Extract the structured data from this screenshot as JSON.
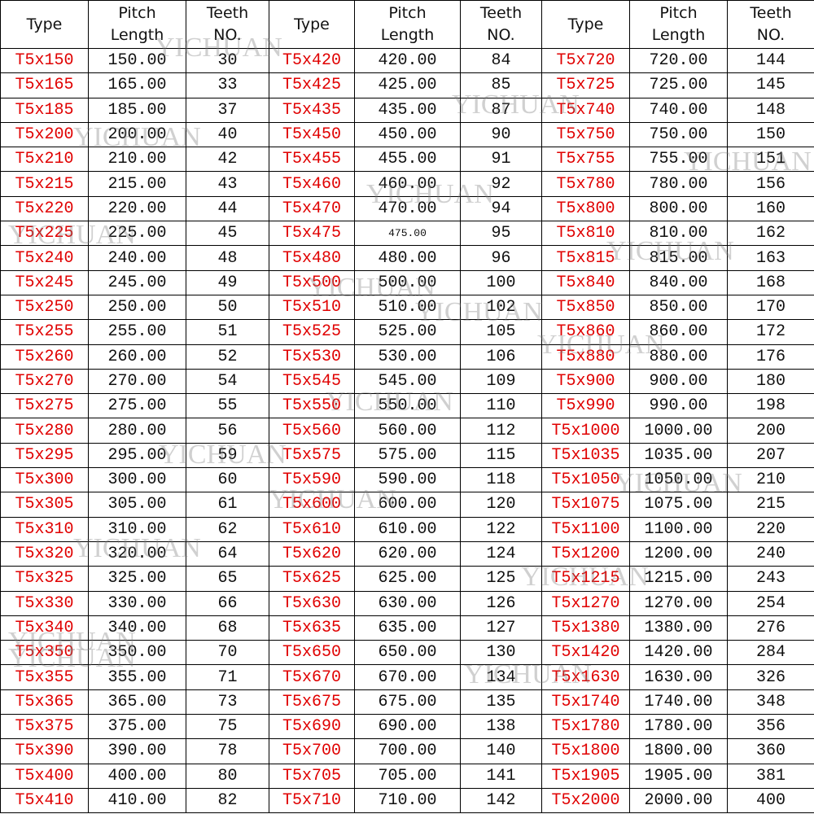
{
  "table": {
    "header": [
      "Type",
      "Pitch Length",
      "Teeth NO.",
      "Type",
      "Pitch Length",
      "Teeth NO.",
      "Type",
      "Pitch Length",
      "Teeth NO."
    ],
    "rows": [
      [
        "T5x150",
        "150.00",
        "30",
        "T5x420",
        "420.00",
        "84",
        "T5x720",
        "720.00",
        "144"
      ],
      [
        "T5x165",
        "165.00",
        "33",
        "T5x425",
        "425.00",
        "85",
        "T5x725",
        "725.00",
        "145"
      ],
      [
        "T5x185",
        "185.00",
        "37",
        "T5x435",
        "435.00",
        "87",
        "T5x740",
        "740.00",
        "148"
      ],
      [
        "T5x200",
        "200.00",
        "40",
        "T5x450",
        "450.00",
        "90",
        "T5x750",
        "750.00",
        "150"
      ],
      [
        "T5x210",
        "210.00",
        "42",
        "T5x455",
        "455.00",
        "91",
        "T5x755",
        "755.00",
        "151"
      ],
      [
        "T5x215",
        "215.00",
        "43",
        "T5x460",
        "460.00",
        "92",
        "T5x780",
        "780.00",
        "156"
      ],
      [
        "T5x220",
        "220.00",
        "44",
        "T5x470",
        "470.00",
        "94",
        "T5x800",
        "800.00",
        "160"
      ],
      [
        "T5x225",
        "225.00",
        "45",
        "T5x475",
        "475.00",
        "95",
        "T5x810",
        "810.00",
        "162"
      ],
      [
        "T5x240",
        "240.00",
        "48",
        "T5x480",
        "480.00",
        "96",
        "T5x815",
        "815.00",
        "163"
      ],
      [
        "T5x245",
        "245.00",
        "49",
        "T5x500",
        "500.00",
        "100",
        "T5x840",
        "840.00",
        "168"
      ],
      [
        "T5x250",
        "250.00",
        "50",
        "T5x510",
        "510.00",
        "102",
        "T5x850",
        "850.00",
        "170"
      ],
      [
        "T5x255",
        "255.00",
        "51",
        "T5x525",
        "525.00",
        "105",
        "T5x860",
        "860.00",
        "172"
      ],
      [
        "T5x260",
        "260.00",
        "52",
        "T5x530",
        "530.00",
        "106",
        "T5x880",
        "880.00",
        "176"
      ],
      [
        "T5x270",
        "270.00",
        "54",
        "T5x545",
        "545.00",
        "109",
        "T5x900",
        "900.00",
        "180"
      ],
      [
        "T5x275",
        "275.00",
        "55",
        "T5x550",
        "550.00",
        "110",
        "T5x990",
        "990.00",
        "198"
      ],
      [
        "T5x280",
        "280.00",
        "56",
        "T5x560",
        "560.00",
        "112",
        "T5x1000",
        "1000.00",
        "200"
      ],
      [
        "T5x295",
        "295.00",
        "59",
        "T5x575",
        "575.00",
        "115",
        "T5x1035",
        "1035.00",
        "207"
      ],
      [
        "T5x300",
        "300.00",
        "60",
        "T5x590",
        "590.00",
        "118",
        "T5x1050",
        "1050.00",
        "210"
      ],
      [
        "T5x305",
        "305.00",
        "61",
        "T5x600",
        "600.00",
        "120",
        "T5x1075",
        "1075.00",
        "215"
      ],
      [
        "T5x310",
        "310.00",
        "62",
        "T5x610",
        "610.00",
        "122",
        "T5x1100",
        "1100.00",
        "220"
      ],
      [
        "T5x320",
        "320.00",
        "64",
        "T5x620",
        "620.00",
        "124",
        "T5x1200",
        "1200.00",
        "240"
      ],
      [
        "T5x325",
        "325.00",
        "65",
        "T5x625",
        "625.00",
        "125",
        "T5x1215",
        "1215.00",
        "243"
      ],
      [
        "T5x330",
        "330.00",
        "66",
        "T5x630",
        "630.00",
        "126",
        "T5x1270",
        "1270.00",
        "254"
      ],
      [
        "T5x340",
        "340.00",
        "68",
        "T5x635",
        "635.00",
        "127",
        "T5x1380",
        "1380.00",
        "276"
      ],
      [
        "T5x350",
        "350.00",
        "70",
        "T5x650",
        "650.00",
        "130",
        "T5x1420",
        "1420.00",
        "284"
      ],
      [
        "T5x355",
        "355.00",
        "71",
        "T5x670",
        "670.00",
        "134",
        "T5x1630",
        "1630.00",
        "326"
      ],
      [
        "T5x365",
        "365.00",
        "73",
        "T5x675",
        "675.00",
        "135",
        "T5x1740",
        "1740.00",
        "348"
      ],
      [
        "T5x375",
        "375.00",
        "75",
        "T5x690",
        "690.00",
        "138",
        "T5x1780",
        "1780.00",
        "356"
      ],
      [
        "T5x390",
        "390.00",
        "78",
        "T5x700",
        "700.00",
        "140",
        "T5x1800",
        "1800.00",
        "360"
      ],
      [
        "T5x400",
        "400.00",
        "80",
        "T5x705",
        "705.00",
        "141",
        "T5x1905",
        "1905.00",
        "381"
      ],
      [
        "T5x410",
        "410.00",
        "82",
        "T5x710",
        "710.00",
        "142",
        "T5x2000",
        "2000.00",
        "400"
      ]
    ]
  },
  "watermarks": [
    "YICHUAN",
    "YICHUAN",
    "YICHUAN",
    "YICHUAN",
    "YICHUAN",
    "YICHUAN",
    "YICHUAN",
    "YICHUAN",
    "YICHUAN",
    "YICHUAN",
    "YICHUAN",
    "YICHUAN",
    "YICHUAN",
    "YICHUAN",
    "YICHUAN",
    "YICHUAN",
    "YICHUAN",
    "YICHUAN",
    "YICHUAN"
  ]
}
